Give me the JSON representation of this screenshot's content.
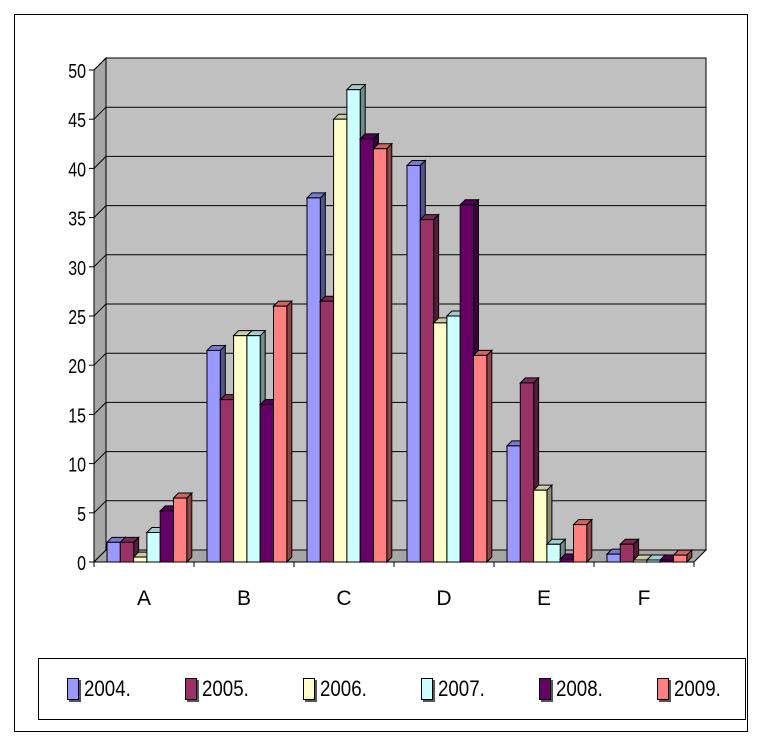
{
  "chart_data": {
    "type": "bar",
    "categories": [
      "A",
      "B",
      "C",
      "D",
      "E",
      "F"
    ],
    "series": [
      {
        "name": "2004.",
        "color": "#9999ff",
        "values": [
          2,
          21.5,
          37,
          40.3,
          11.8,
          0.8
        ]
      },
      {
        "name": "2005.",
        "color": "#993366",
        "values": [
          2,
          16.5,
          26.5,
          34.8,
          18.2,
          1.8
        ]
      },
      {
        "name": "2006.",
        "color": "#ffffcc",
        "values": [
          0.5,
          23,
          45,
          24.3,
          7.3,
          0.2
        ]
      },
      {
        "name": "2007.",
        "color": "#ccffff",
        "values": [
          3,
          23,
          48,
          25,
          1.8,
          0.2
        ]
      },
      {
        "name": "2008.",
        "color": "#660066",
        "values": [
          5.2,
          16,
          43,
          36.3,
          0.3,
          0.2
        ]
      },
      {
        "name": "2009.",
        "color": "#ff8080",
        "values": [
          6.5,
          26,
          42,
          21,
          3.8,
          0.7
        ]
      }
    ],
    "ylim": [
      0,
      50
    ],
    "yticks": [
      0,
      5,
      10,
      15,
      20,
      25,
      30,
      35,
      40,
      45,
      50
    ],
    "grid": true,
    "legend_position": "bottom",
    "plot_background": "#c0c0c0",
    "three_d": true
  }
}
